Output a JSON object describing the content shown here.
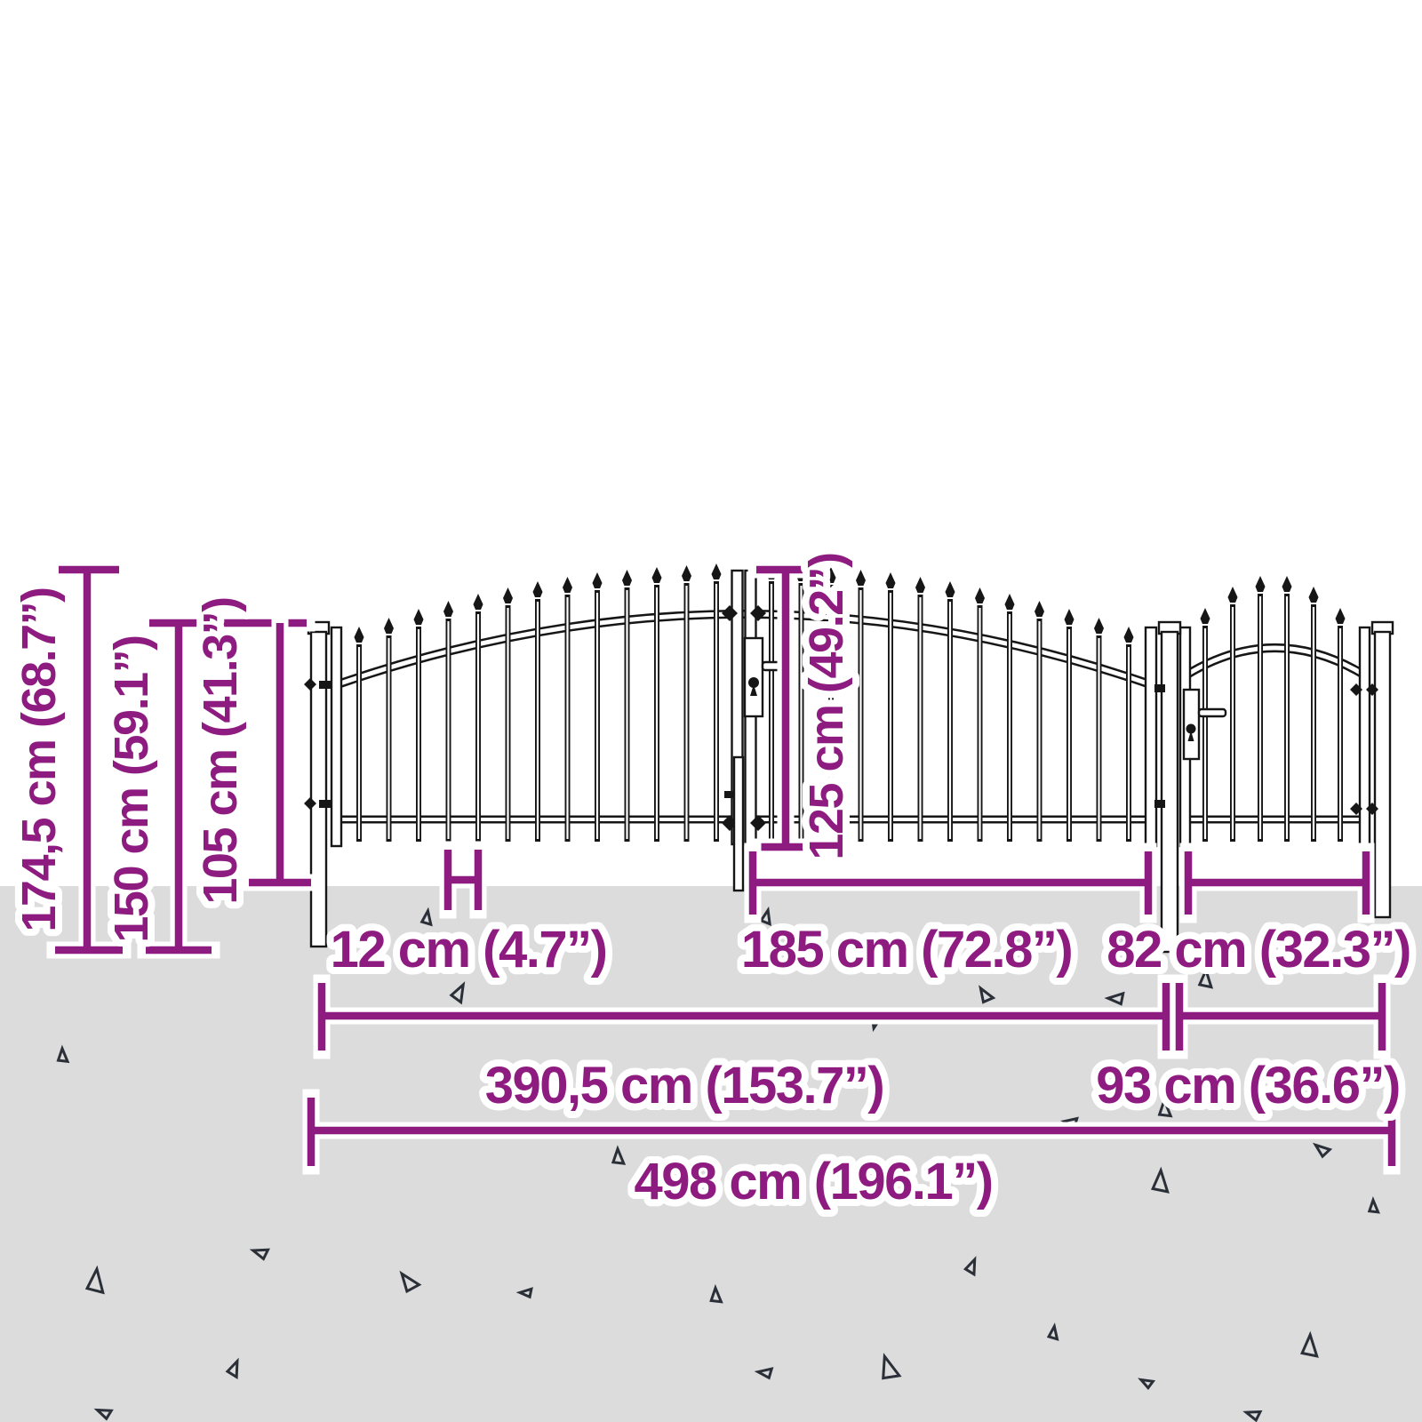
{
  "figure": {
    "type": "product-dimension-diagram",
    "subject": "metal garden gate set with spear-top pickets: double gate and single gate between posts"
  },
  "colors": {
    "background": "#FFFFFF",
    "ground": "#DCDCDC",
    "accent": "#8E1C80",
    "ink": "#161616",
    "triangle": "#2A2F38"
  },
  "labels": {
    "total_height": "174,5 cm (68.7”)",
    "gate_height": "150 cm (59.1”)",
    "lower_height": "105 cm (41.3”)",
    "inner_height": "125 cm (49.2”)",
    "bar_spacing": "12 cm (4.7”)",
    "leaf_width": "185 cm (72.8”)",
    "small_gate_width": "82 cm (32.3”)",
    "double_gate_width": "390,5 cm (153.7”)",
    "small_section_width": "93 cm (36.6”)",
    "total_width": "498 cm (196.1”)"
  },
  "decor": {
    "triangles": [
      [
        480,
        1033,
        15,
        10
      ],
      [
        516,
        1117,
        19,
        30
      ],
      [
        862,
        1032,
        15,
        15
      ],
      [
        985,
        1150,
        13,
        195
      ],
      [
        1108,
        1120,
        17,
        -30
      ],
      [
        1256,
        1124,
        17,
        -85
      ],
      [
        1356,
        1102,
        19,
        5
      ],
      [
        70,
        1188,
        15,
        0
      ],
      [
        1310,
        1248,
        18,
        0
      ],
      [
        1205,
        1263,
        14,
        -80
      ],
      [
        1487,
        1294,
        16,
        -50
      ],
      [
        695,
        1302,
        17,
        0
      ],
      [
        1545,
        1358,
        14,
        0
      ],
      [
        1305,
        1330,
        24,
        5
      ],
      [
        107,
        1442,
        26,
        8
      ],
      [
        293,
        1410,
        16,
        -70
      ],
      [
        459,
        1443,
        22,
        -35
      ],
      [
        592,
        1455,
        13,
        -85
      ],
      [
        805,
        1458,
        16,
        0
      ],
      [
        1093,
        1425,
        16,
        25
      ],
      [
        1185,
        1500,
        14,
        10
      ],
      [
        1473,
        1515,
        24,
        5
      ],
      [
        861,
        1545,
        15,
        -80
      ],
      [
        999,
        1540,
        26,
        -15
      ],
      [
        1290,
        1556,
        13,
        -60
      ],
      [
        263,
        1540,
        17,
        25
      ],
      [
        117,
        1590,
        15,
        -65
      ],
      [
        1410,
        1592,
        15,
        -70
      ]
    ]
  }
}
